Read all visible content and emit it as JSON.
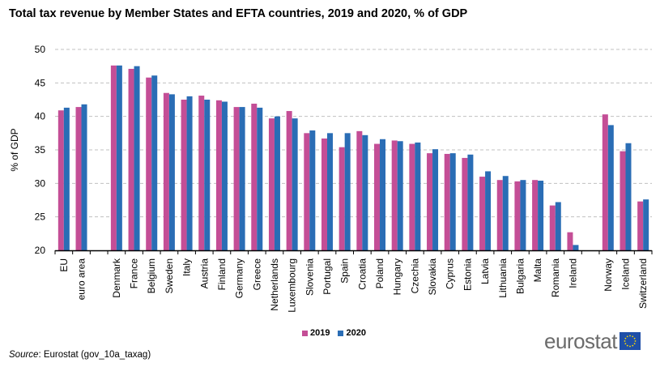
{
  "chart_data": {
    "type": "bar",
    "title": "Total tax revenue by Member States and EFTA countries, 2019 and 2020, % of GDP",
    "xlabel": "",
    "ylabel": "% of GDP",
    "ylim": [
      20,
      50
    ],
    "yticks": [
      20,
      25,
      30,
      35,
      40,
      45,
      50
    ],
    "grid": true,
    "legend_position": "bottom-center",
    "categories": [
      "EU",
      "euro area",
      "",
      "Denmark",
      "France",
      "Belgium",
      "Sweden",
      "Italy",
      "Austria",
      "Finland",
      "Germany",
      "Greece",
      "Netherlands",
      "Luxembourg",
      "Slovenia",
      "Portugal",
      "Spain",
      "Croatia",
      "Poland",
      "Hungary",
      "Czechia",
      "Slovakia",
      "Cyprus",
      "Estonia",
      "Latvia",
      "Lithuania",
      "Bulgaria",
      "Malta",
      "Romania",
      "Ireland",
      "",
      "Norway",
      "Iceland",
      "Switzerland"
    ],
    "series": [
      {
        "name": "2019",
        "color": "#c44e96",
        "values": [
          40.9,
          41.4,
          null,
          47.6,
          47.1,
          45.8,
          43.5,
          42.5,
          43.1,
          42.4,
          41.4,
          41.9,
          39.7,
          40.8,
          37.5,
          36.7,
          35.4,
          37.8,
          35.9,
          36.4,
          35.9,
          34.5,
          34.4,
          33.8,
          31.0,
          30.5,
          30.3,
          30.5,
          26.7,
          22.7,
          null,
          40.3,
          34.8,
          27.3
        ]
      },
      {
        "name": "2020",
        "color": "#2a6db5",
        "values": [
          41.3,
          41.8,
          null,
          47.6,
          47.5,
          46.1,
          43.3,
          43.0,
          42.5,
          42.2,
          41.4,
          41.3,
          40.0,
          39.7,
          37.9,
          37.5,
          37.5,
          37.2,
          36.6,
          36.3,
          36.1,
          35.1,
          34.5,
          34.3,
          31.8,
          31.1,
          30.5,
          30.4,
          27.2,
          20.8,
          null,
          38.7,
          36.0,
          27.6
        ]
      }
    ]
  },
  "source": {
    "label": "Source",
    "text": ": Eurostat (gov_10a_taxag)"
  },
  "logo": {
    "text": "eurostat",
    "flag_color": "#1f4fa8",
    "star_color": "#ffdd00"
  }
}
